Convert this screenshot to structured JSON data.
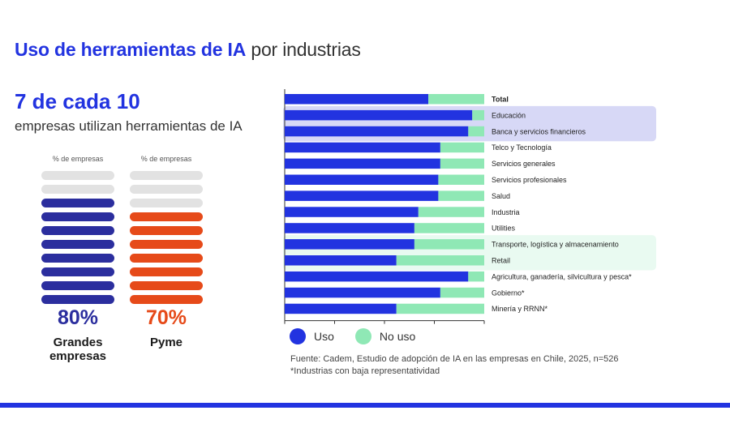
{
  "title": {
    "strong": "Uso de herramientas de IA",
    "light": "por industrias"
  },
  "headline": "7 de cada 10",
  "subheadline": "empresas utilizan herramientas de IA",
  "colors": {
    "uso": "#2233e0",
    "no_uso": "#8fe8b5",
    "pill_large": "#2b2e9e",
    "pill_pyme": "#e64a19",
    "pill_empty": "#e2e2e2",
    "highlight_purple": "#d7d8f6",
    "highlight_green": "#e9faf1",
    "rule": "#2233e0",
    "pct_large": "#2b2e9e",
    "pct_pyme": "#e64a19"
  },
  "pictograms": [
    {
      "axis_label": "% de empresas",
      "filled": 8,
      "total": 10,
      "percent": "80%",
      "name": "Grandes empresas",
      "color_key": "pill_large"
    },
    {
      "axis_label": "% de empresas",
      "filled": 7,
      "total": 10,
      "percent": "70%",
      "name": "Pyme",
      "color_key": "pill_pyme"
    }
  ],
  "chart_data": {
    "type": "bar",
    "orientation": "horizontal",
    "stacked": true,
    "title": "",
    "xlim": [
      0,
      100
    ],
    "xlabel": "",
    "ylabel": "",
    "legend_position": "bottom-left",
    "categories": [
      "Total",
      "Educación",
      "Banca y servicios financieros",
      "Telco y Tecnología",
      "Servicios generales",
      "Servicios profesionales",
      "Salud",
      "Industria",
      "Utilities",
      "Transporte, logística y almacenamiento",
      "Retail",
      "Agricultura, ganadería, silvicultura y pesca*",
      "Gobierno*",
      "Minería y RRNN*"
    ],
    "series": [
      {
        "name": "Uso",
        "values": [
          72,
          94,
          92,
          78,
          78,
          77,
          77,
          67,
          65,
          65,
          56,
          92,
          78,
          56
        ]
      },
      {
        "name": "No uso",
        "values": [
          28,
          6,
          8,
          22,
          22,
          23,
          23,
          33,
          35,
          35,
          44,
          8,
          22,
          44
        ]
      }
    ],
    "highlight_groups": [
      {
        "color_key": "highlight_purple",
        "categories": [
          "Educación",
          "Banca y servicios financieros"
        ]
      },
      {
        "color_key": "highlight_green",
        "categories": [
          "Transporte, logística y almacenamiento",
          "Retail"
        ]
      }
    ],
    "bold_categories": [
      "Total"
    ]
  },
  "legend": {
    "uso": "Uso",
    "no_uso": "No uso"
  },
  "source": {
    "line1": "Fuente: Cadem, Estudio de adopción de IA en las empresas en Chile, 2025, n=526",
    "line2": "*Industrias con baja representatividad"
  }
}
